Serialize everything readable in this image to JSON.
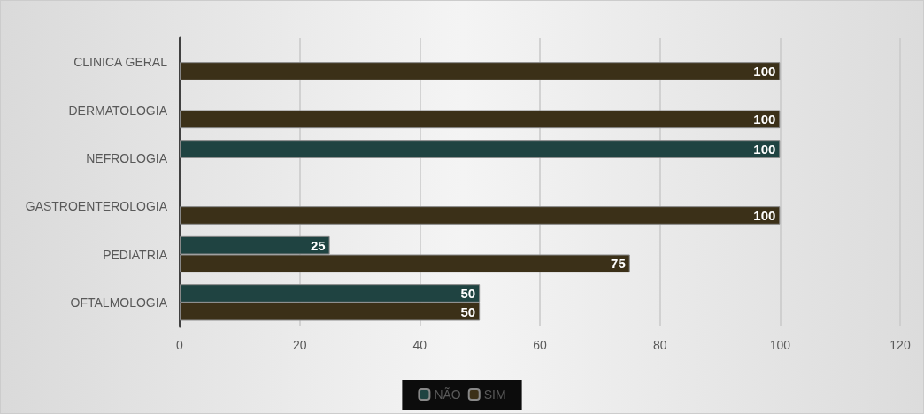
{
  "chart_data": {
    "type": "bar",
    "orientation": "horizontal",
    "categories": [
      "CLINICA GERAL",
      "DERMATOLOGIA",
      "NEFROLOGIA",
      "GASTROENTEROLOGIA",
      "PEDIATRIA",
      "OFTALMOLOGIA"
    ],
    "series": [
      {
        "name": "NÃO",
        "color": "#1f4341",
        "values": [
          null,
          null,
          100,
          null,
          25,
          50
        ]
      },
      {
        "name": "SIM",
        "color": "#3b3018",
        "values": [
          100,
          100,
          null,
          100,
          75,
          50
        ]
      }
    ],
    "xlim": [
      0,
      120
    ],
    "xticks": [
      0,
      20,
      40,
      60,
      80,
      100,
      120
    ],
    "grid": "x",
    "legend": "bottom",
    "data_labels": true
  }
}
